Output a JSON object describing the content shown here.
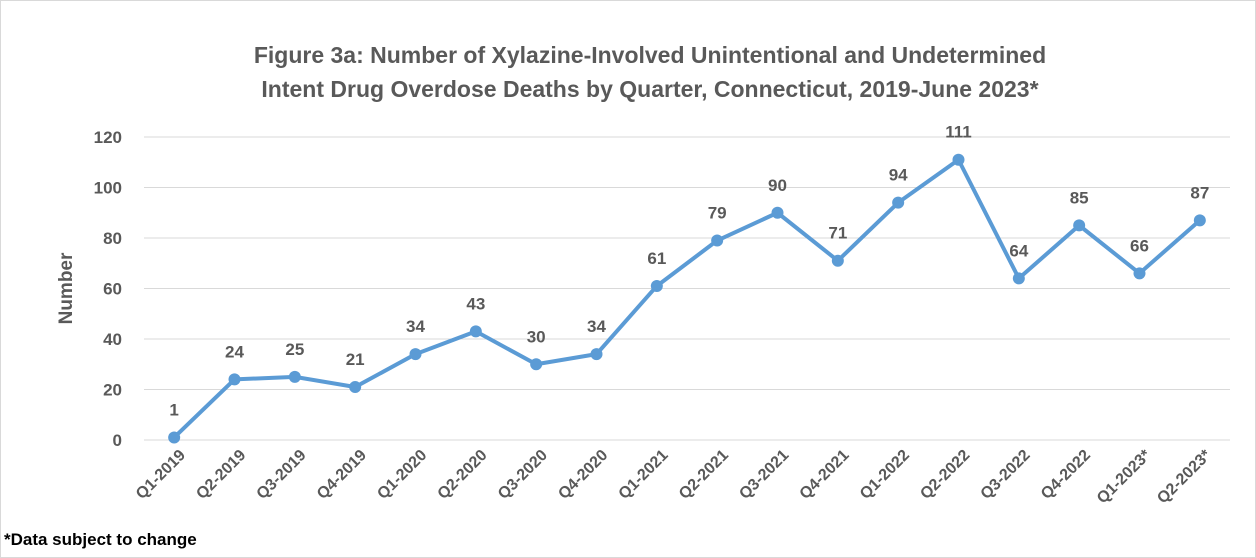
{
  "chart_data": {
    "type": "line",
    "title": "Figure 3a: Number of Xylazine-Involved Unintentional and Undetermined Intent Drug Overdose Deaths by Quarter, Connecticut, 2019-June 2023*",
    "annotation": "*Data subject to change",
    "y_label": "Number",
    "categories": [
      "Q1-2019",
      "Q2-2019",
      "Q3-2019",
      "Q4-2019",
      "Q1-2020",
      "Q2-2020",
      "Q3-2020",
      "Q4-2020",
      "Q1-2021",
      "Q2-2021",
      "Q3-2021",
      "Q4-2021",
      "Q1-2022",
      "Q2-2022",
      "Q3-2022",
      "Q4-2022",
      "Q1-2023*",
      "Q2-2023*"
    ],
    "values": [
      1,
      24,
      25,
      21,
      34,
      43,
      30,
      34,
      61,
      79,
      90,
      71,
      94,
      111,
      64,
      85,
      66,
      87
    ],
    "color": "#5b9bd5",
    "ylim": [
      0,
      120
    ],
    "yticks": [
      0,
      20,
      40,
      60,
      80,
      100,
      120
    ],
    "grid": true
  }
}
